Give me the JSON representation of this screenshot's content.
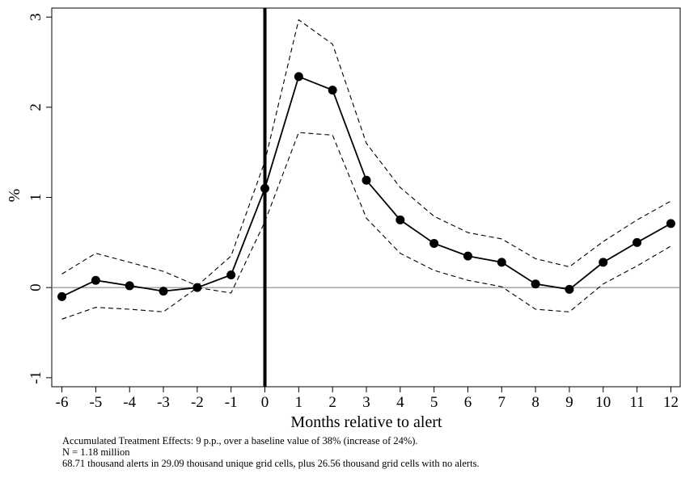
{
  "chart_data": {
    "type": "line",
    "xlabel": "Months relative to alert",
    "ylabel": "%",
    "x": [
      -6,
      -5,
      -4,
      -3,
      -2,
      -1,
      0,
      1,
      2,
      3,
      4,
      5,
      6,
      7,
      8,
      9,
      10,
      11,
      12
    ],
    "xticks": [
      "-6",
      "-5",
      "-4",
      "-3",
      "-2",
      "-1",
      "0",
      "1",
      "2",
      "3",
      "4",
      "5",
      "6",
      "7",
      "8",
      "9",
      "10",
      "11",
      "12"
    ],
    "yticks": [
      "-1",
      "0",
      "1",
      "2",
      "3"
    ],
    "xlim": [
      -6.3,
      12.3
    ],
    "ylim": [
      -1.1,
      3.1
    ],
    "series": [
      {
        "role": "estimate",
        "values": [
          -0.1,
          0.08,
          0.02,
          -0.04,
          0.0,
          0.14,
          1.1,
          2.34,
          2.19,
          1.19,
          0.75,
          0.49,
          0.35,
          0.28,
          0.04,
          -0.02,
          0.28,
          0.5,
          0.71
        ]
      },
      {
        "role": "upper_ci",
        "values": [
          0.15,
          0.38,
          0.28,
          0.18,
          0.02,
          0.35,
          1.4,
          2.97,
          2.7,
          1.6,
          1.11,
          0.79,
          0.61,
          0.54,
          0.32,
          0.23,
          0.51,
          0.75,
          0.96
        ]
      },
      {
        "role": "lower_ci",
        "values": [
          -0.35,
          -0.22,
          -0.24,
          -0.27,
          0.0,
          -0.06,
          0.73,
          1.72,
          1.69,
          0.77,
          0.38,
          0.19,
          0.08,
          0.01,
          -0.24,
          -0.27,
          0.04,
          0.24,
          0.46
        ]
      }
    ],
    "reference_lines": {
      "horizontal_y": 0,
      "vertical_x": 0
    },
    "grid": false,
    "legend": "none"
  },
  "notes": {
    "line1": "Accumulated Treatment Effects: 9 p.p., over a baseline value of 38% (increase of 24%).",
    "line2": "N = 1.18 million",
    "line3": "68.71 thousand alerts in 29.09 thousand unique grid cells, plus 26.56 thousand grid cells with no alerts."
  },
  "colors": {
    "line": "#000000",
    "zero_line": "#888888",
    "background": "#ffffff"
  }
}
